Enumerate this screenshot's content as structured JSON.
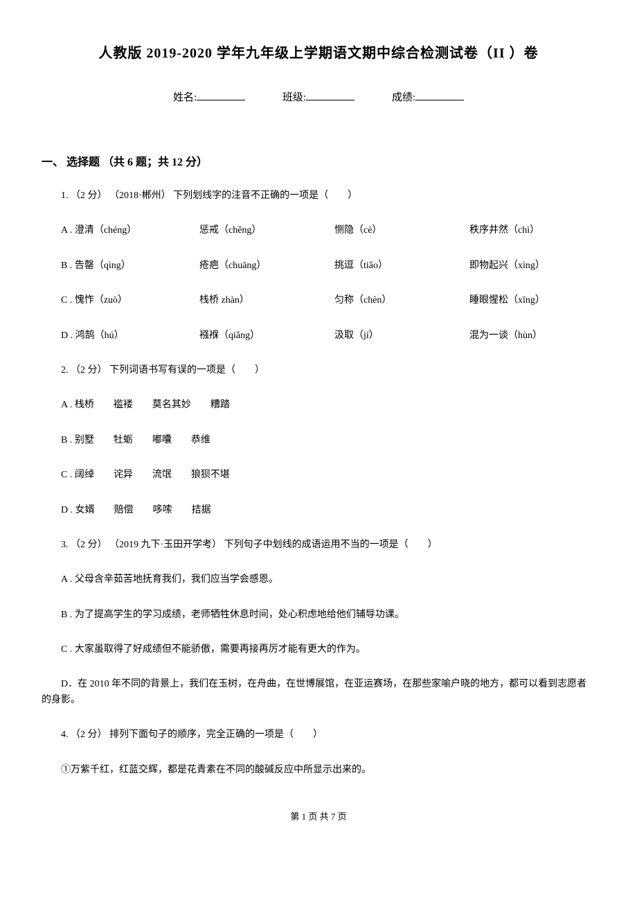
{
  "title": "人教版 2019-2020 学年九年级上学期语文期中综合检测试卷（II ）卷",
  "info": {
    "name_label": "姓名:",
    "class_label": "班级:",
    "score_label": "成绩:"
  },
  "section1": {
    "header": "一、 选择题 （共 6 题；共 12 分）",
    "q1": {
      "stem": "1. （2 分） （2018·郴州） 下列划线字的注音不正确的一项是（　　）",
      "opts": {
        "A1": "A . 澄清（chéng）",
        "A2": "惩戒（chěng）",
        "A3": "恻隐（cè）",
        "A4": "秩序井然（chì）",
        "B1": "B . 告罄（qìng）",
        "B2": "疮疤（chuāng）",
        "B3": "挑逗（tiǎo）",
        "B4": "即物起兴（xìng）",
        "C1": "C . 愧怍（zuò）",
        "C2": "栈桥 zhàn）",
        "C3": "匀称（chèn）",
        "C4": "睡眼惺松（xīng）",
        "D1": "D . 鸿鹄（hú）",
        "D2": "襁褓（qiǎng）",
        "D3": "汲取（jí）",
        "D4": "混为一谈（hùn）"
      }
    },
    "q2": {
      "stem": "2. （2 分）  下列词语书写有误的一项是（　　）",
      "A": "A . 栈桥　　褴褛　　莫名其妙　　糟踏",
      "B": "B . 别墅　　牡蛎　　嘟囔　　恭维",
      "C": "C . 阔绰　　诧异　　流氓　　狼狈不堪",
      "D": "D . 女婿　　赔偿　　哆嗦　　拮据"
    },
    "q3": {
      "stem": "3. （2 分） （2019 九下·玉田开学考） 下列句子中划线的成语运用不当的一项是（　　）",
      "A": "A . 父母含辛茹苦地抚育我们，我们应当学会感恩。",
      "B": "B . 为了提高学生的学习成绩，老师牺牲休息时间，处心积虑地给他们辅导功课。",
      "C": "C . 大家虽取得了好成绩但不能骄傲，需要再接再厉才能有更大的作为。",
      "D": "D．在 2010 年不同的背景上，我们在玉树，在舟曲，在世博展馆，在亚运赛场，在那些家喻户晓的地方，都可以看到志愿者的身影。"
    },
    "q4": {
      "stem": "4. （2 分）  排列下面句子的顺序，完全正确的一项是（　　）",
      "line1": "①万紫千红，红蓝交辉，都是花青素在不同的酸碱反应中所显示出来的。"
    }
  },
  "footer": "第 1 页 共 7 页"
}
